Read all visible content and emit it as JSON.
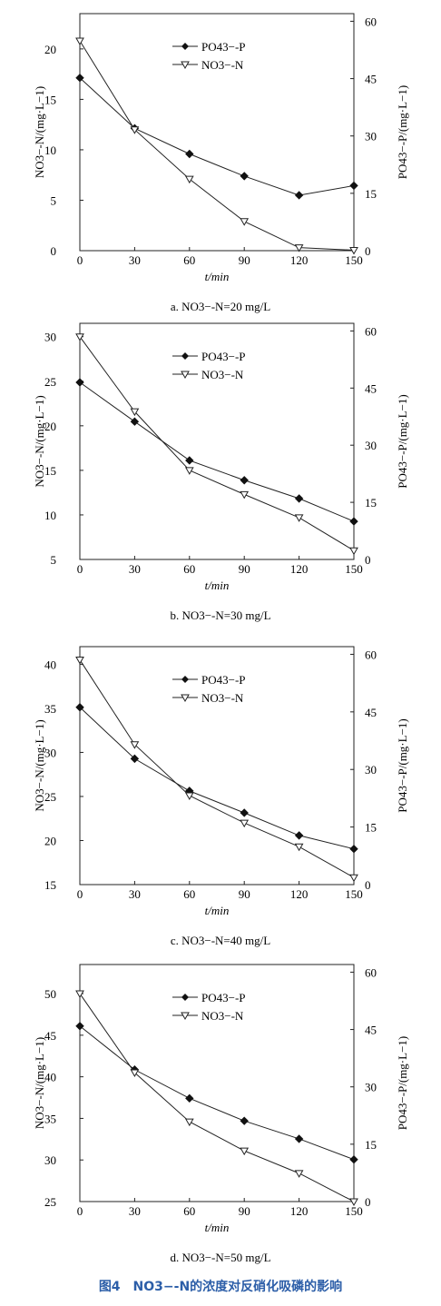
{
  "figure_caption": "图4　NO3−-N的浓度对反硝化吸磷的影响",
  "chart_data": [
    {
      "type": "line",
      "subtitle": "a. NO3−-N=20 mg/L",
      "xlabel": "t/min",
      "ylabel_left": "NO3−-N/(mg·L−1)",
      "ylabel_right": "PO43−-P/(mg·L−1)",
      "x_ticks": [
        0,
        30,
        60,
        90,
        120,
        150
      ],
      "y_left_ticks": [
        0,
        5,
        10,
        15,
        20
      ],
      "y_right_ticks": [
        0,
        15,
        30,
        45,
        60
      ],
      "ylim_left": [
        0,
        23.5
      ],
      "ylim_right": [
        0,
        62
      ],
      "x": [
        0,
        30,
        60,
        90,
        120,
        150
      ],
      "series": [
        {
          "name": "PO43−-P",
          "axis": "right",
          "marker": "diamond",
          "values": [
            45.2,
            32.0,
            25.3,
            19.5,
            14.5,
            17.0
          ]
        },
        {
          "name": "NO3−-N",
          "axis": "left",
          "marker": "triangle-down",
          "values": [
            20.8,
            12.0,
            7.1,
            2.9,
            0.3,
            0.05
          ]
        }
      ],
      "legend": "top-center"
    },
    {
      "type": "line",
      "subtitle": "b. NO3−-N=30 mg/L",
      "xlabel": "t/min",
      "ylabel_left": "NO3−-N/(mg·L−1)",
      "ylabel_right": "PO43−-P/(mg·L−1)",
      "x_ticks": [
        0,
        30,
        60,
        90,
        120,
        150
      ],
      "y_left_ticks": [
        5,
        10,
        15,
        20,
        25,
        30
      ],
      "y_right_ticks": [
        0,
        15,
        30,
        45,
        60
      ],
      "ylim_left": [
        5,
        31.5
      ],
      "ylim_right": [
        0,
        62
      ],
      "x": [
        0,
        30,
        60,
        90,
        120,
        150
      ],
      "series": [
        {
          "name": "PO43−-P",
          "axis": "right",
          "marker": "diamond",
          "values": [
            46.5,
            36.2,
            26.0,
            20.8,
            16.0,
            10.0
          ]
        },
        {
          "name": "NO3−-N",
          "axis": "left",
          "marker": "triangle-down",
          "values": [
            30.0,
            21.6,
            15.0,
            12.3,
            9.7,
            6.0
          ]
        }
      ],
      "legend": "top-center"
    },
    {
      "type": "line",
      "subtitle": "c. NO3−-N=40 mg/L",
      "xlabel": "t/min",
      "ylabel_left": "NO3−-N/(mg·L−1)",
      "ylabel_right": "PO43−-P/(mg·L−1)",
      "x_ticks": [
        0,
        30,
        60,
        90,
        120,
        150
      ],
      "y_left_ticks": [
        15,
        20,
        25,
        30,
        35,
        40
      ],
      "y_right_ticks": [
        0,
        15,
        30,
        45,
        60
      ],
      "ylim_left": [
        15,
        42
      ],
      "ylim_right": [
        0,
        62
      ],
      "x": [
        0,
        30,
        60,
        90,
        120,
        150
      ],
      "series": [
        {
          "name": "PO43−-P",
          "axis": "right",
          "marker": "diamond",
          "values": [
            46.2,
            32.8,
            24.4,
            18.7,
            12.8,
            9.3
          ]
        },
        {
          "name": "NO3−-N",
          "axis": "left",
          "marker": "triangle-down",
          "values": [
            40.5,
            30.9,
            25.1,
            22.0,
            19.3,
            15.8
          ]
        }
      ],
      "legend": "top-center"
    },
    {
      "type": "line",
      "subtitle": "d. NO3−-N=50 mg/L",
      "xlabel": "t/min",
      "ylabel_left": "NO3−-N/(mg·L−1)",
      "ylabel_right": "PO43−-P/(mg·L−1)",
      "x_ticks": [
        0,
        30,
        60,
        90,
        120,
        150
      ],
      "y_left_ticks": [
        25,
        30,
        35,
        40,
        45,
        50
      ],
      "y_right_ticks": [
        0,
        15,
        30,
        45,
        60
      ],
      "ylim_left": [
        25,
        53.5
      ],
      "ylim_right": [
        0,
        62
      ],
      "x": [
        0,
        30,
        60,
        90,
        120,
        150
      ],
      "series": [
        {
          "name": "PO43−-P",
          "axis": "right",
          "marker": "diamond",
          "values": [
            45.9,
            34.5,
            27.0,
            21.1,
            16.4,
            11.0
          ]
        },
        {
          "name": "NO3−-N",
          "axis": "left",
          "marker": "triangle-down",
          "values": [
            50.0,
            40.5,
            34.6,
            31.1,
            28.4,
            25.0
          ]
        }
      ],
      "legend": "top-center"
    }
  ]
}
